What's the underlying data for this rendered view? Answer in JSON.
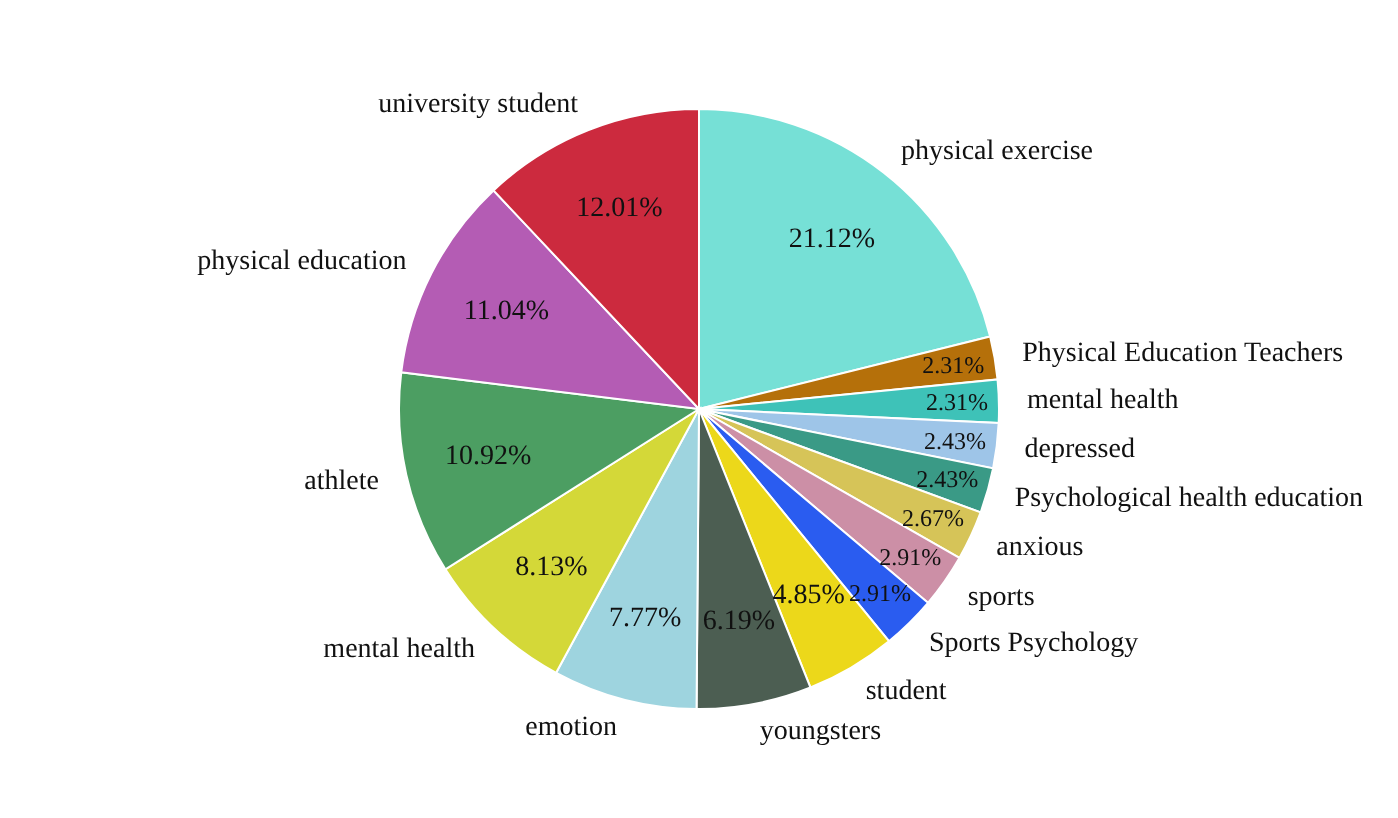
{
  "chart_data": {
    "type": "pie",
    "value_labels": [
      "21.12%",
      "2.31%",
      "2.31%",
      "2.43%",
      "2.43%",
      "2.67%",
      "2.91%",
      "2.91%",
      "4.85%",
      "6.19%",
      "7.77%",
      "8.13%",
      "10.92%",
      "11.04%",
      "12.01%"
    ],
    "categories": [
      "physical exercise",
      "Physical Education Teachers",
      "mental health",
      "depressed",
      "Psychological health education",
      "anxious",
      "sports",
      "Sports Psychology",
      "student",
      "youngsters",
      "emotion",
      "mental health",
      "athlete",
      "physical education",
      "university student"
    ],
    "values": [
      21.12,
      2.31,
      2.31,
      2.43,
      2.43,
      2.67,
      2.91,
      2.91,
      4.85,
      6.19,
      7.77,
      8.13,
      10.92,
      11.04,
      12.01
    ],
    "colors": [
      "#76e0d6",
      "#b5700a",
      "#3ec2b8",
      "#9ec5e8",
      "#3a9a86",
      "#d6c458",
      "#cc8fa6",
      "#2a5cf0",
      "#ecd81a",
      "#4c5e52",
      "#9ed4df",
      "#d4d838",
      "#4c9e62",
      "#b45cb4",
      "#cc2a3e"
    ]
  }
}
